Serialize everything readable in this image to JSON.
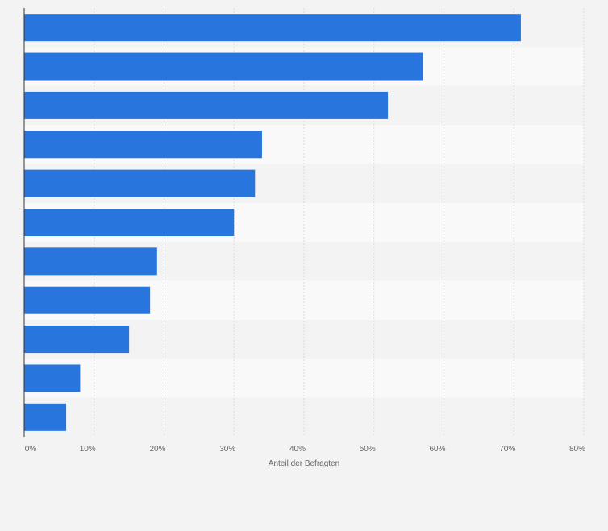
{
  "chart_data": {
    "type": "bar",
    "orientation": "horizontal",
    "categories": [
      "",
      "",
      "",
      "",
      "",
      "",
      "",
      "",
      "",
      "",
      ""
    ],
    "values": [
      71,
      57,
      52,
      34,
      33,
      30,
      19,
      18,
      15,
      8,
      6
    ],
    "title": "",
    "xlabel": "Anteil der Befragten",
    "ylabel": "",
    "xlim": [
      0,
      80
    ],
    "x_ticks": [
      {
        "value": 0,
        "label": "0%"
      },
      {
        "value": 10,
        "label": "10%"
      },
      {
        "value": 20,
        "label": "20%"
      },
      {
        "value": 30,
        "label": "30%"
      },
      {
        "value": 40,
        "label": "40%"
      },
      {
        "value": 50,
        "label": "50%"
      },
      {
        "value": 60,
        "label": "60%"
      },
      {
        "value": 70,
        "label": "70%"
      },
      {
        "value": 80,
        "label": "80%"
      }
    ],
    "grid": true,
    "legend": "none",
    "bar_color": "#2876dd",
    "band_colors": [
      "#f3f3f3",
      "#f9f9f9"
    ],
    "gridline_color": "#d9d9d9"
  }
}
